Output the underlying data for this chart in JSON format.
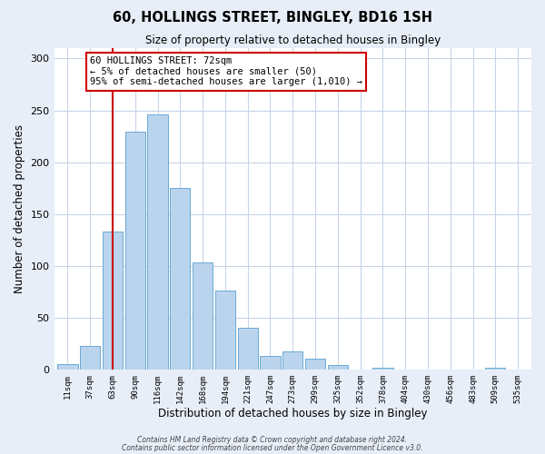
{
  "title": "60, HOLLINGS STREET, BINGLEY, BD16 1SH",
  "subtitle": "Size of property relative to detached houses in Bingley",
  "xlabel": "Distribution of detached houses by size in Bingley",
  "ylabel": "Number of detached properties",
  "bar_labels": [
    "11sqm",
    "37sqm",
    "63sqm",
    "90sqm",
    "116sqm",
    "142sqm",
    "168sqm",
    "194sqm",
    "221sqm",
    "247sqm",
    "273sqm",
    "299sqm",
    "325sqm",
    "352sqm",
    "378sqm",
    "404sqm",
    "430sqm",
    "456sqm",
    "483sqm",
    "509sqm",
    "535sqm"
  ],
  "bar_values": [
    5,
    23,
    133,
    229,
    246,
    175,
    103,
    76,
    40,
    13,
    17,
    10,
    4,
    0,
    2,
    0,
    0,
    0,
    0,
    2,
    0
  ],
  "bar_color": "#bad4ed",
  "bar_edge_color": "#6aaad4",
  "vline_x": 2,
  "vline_color": "#cc0000",
  "annotation_text": "60 HOLLINGS STREET: 72sqm\n← 5% of detached houses are smaller (50)\n95% of semi-detached houses are larger (1,010) →",
  "annotation_box_edgecolor": "#cc0000",
  "ylim": [
    0,
    310
  ],
  "yticks": [
    0,
    50,
    100,
    150,
    200,
    250,
    300
  ],
  "footer1": "Contains HM Land Registry data © Crown copyright and database right 2024.",
  "footer2": "Contains public sector information licensed under the Open Government Licence v3.0.",
  "bg_color": "#e8eef8",
  "plot_bg_color": "#ffffff",
  "grid_color": "#c8d4e8"
}
